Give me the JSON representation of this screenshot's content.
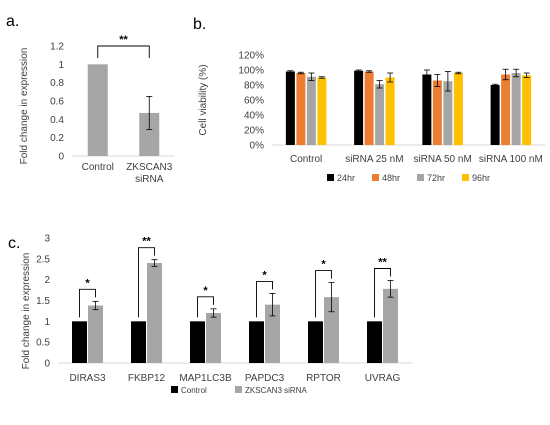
{
  "colors": {
    "control": "#000000",
    "treated": "#a6a6a6",
    "h24": "#000000",
    "h48": "#ed7d31",
    "h72": "#a5a5a5",
    "h96": "#ffc000",
    "axis": "#d9d9d9",
    "text": "#404040"
  },
  "chart_data": [
    {
      "panel_label": "a.",
      "type": "bar",
      "categories": [
        "Control",
        "ZKSCAN3 siRNA"
      ],
      "category_lines": [
        [
          "Control"
        ],
        [
          "ZKSCAN3",
          "siRNA"
        ]
      ],
      "values": [
        1.0,
        0.47
      ],
      "errors": [
        0.0,
        0.18
      ],
      "ylabel": "Fold change in expression",
      "ylim": [
        0,
        1.2
      ],
      "yticks": [
        0,
        0.2,
        0.4,
        0.6,
        0.8,
        1,
        1.2
      ],
      "ytick_labels": [
        "0",
        "0.2",
        "0.4",
        "0.6",
        "0.8",
        "1",
        "1.2"
      ],
      "significance": [
        {
          "from": 0,
          "to": 1,
          "label": "**"
        }
      ]
    },
    {
      "panel_label": "b.",
      "type": "bar",
      "categories": [
        "Control",
        "siRNA  25 nM",
        "siRNA  50 nM",
        "siRNA  100 nM"
      ],
      "series": [
        {
          "name": "24hr",
          "values": [
            98,
            99,
            94,
            80
          ],
          "errors": [
            1,
            1,
            6,
            1
          ]
        },
        {
          "name": "48hr",
          "values": [
            96,
            98,
            86,
            94
          ],
          "errors": [
            1,
            1,
            8,
            7
          ]
        },
        {
          "name": "72hr",
          "values": [
            91,
            81,
            85,
            96
          ],
          "errors": [
            5,
            5,
            13,
            5
          ]
        },
        {
          "name": "96hr",
          "values": [
            90,
            90,
            96,
            93
          ],
          "errors": [
            1,
            6,
            1,
            3
          ]
        }
      ],
      "ylabel": "Cell viability (%)",
      "ylim": [
        0,
        120
      ],
      "yticks": [
        0,
        20,
        40,
        60,
        80,
        100,
        120
      ],
      "ytick_labels": [
        "0%",
        "20%",
        "40%",
        "60%",
        "80%",
        "100%",
        "120%"
      ],
      "legend": "bottom"
    },
    {
      "panel_label": "c.",
      "type": "bar",
      "categories": [
        "DIRAS3",
        "FKBP12",
        "MAP1LC3B",
        "PAPDC3",
        "RPTOR",
        "UVRAG"
      ],
      "series": [
        {
          "name": "Control",
          "values": [
            1,
            1,
            1,
            1,
            1,
            1
          ],
          "errors": [
            0,
            0,
            0,
            0,
            0,
            0
          ]
        },
        {
          "name": "ZKSCAN3 siRNA",
          "values": [
            1.38,
            2.4,
            1.2,
            1.4,
            1.58,
            1.78
          ],
          "errors": [
            0.1,
            0.08,
            0.1,
            0.27,
            0.35,
            0.2
          ]
        }
      ],
      "significance": [
        "*",
        "**",
        "*",
        "*",
        "*",
        "**"
      ],
      "ylabel": "Fold change in expression",
      "ylim": [
        0,
        3
      ],
      "yticks": [
        0,
        0.5,
        1,
        1.5,
        2,
        2.5,
        3
      ],
      "ytick_labels": [
        "0",
        "0.5",
        "1",
        "1.5",
        "2",
        "2.5",
        "3"
      ],
      "legend": "bottom"
    }
  ]
}
